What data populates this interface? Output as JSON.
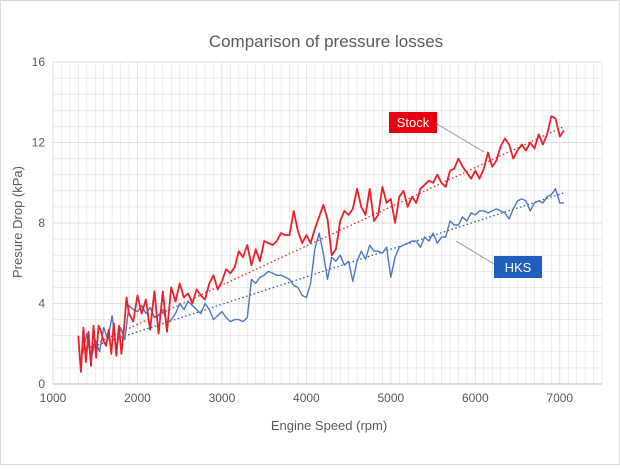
{
  "chart_data": {
    "type": "line",
    "title": "Comparison of pressure losses",
    "xlabel": "Engine Speed (rpm)",
    "ylabel": "Presure Drop (kPa)",
    "xlim": [
      1000,
      7500
    ],
    "ylim": [
      0,
      16
    ],
    "xticks": [
      1000,
      2000,
      3000,
      4000,
      5000,
      6000,
      7000
    ],
    "yticks": [
      0,
      4,
      8,
      12,
      16
    ],
    "grid": true,
    "colors": {
      "stock": "#e8212a",
      "hks": "#4a78c0",
      "stock_trend": "#e8212a",
      "hks_trend": "#2a55b0",
      "grid": "#e2e2e2",
      "callout_stock": "#e60012",
      "callout_hks": "#1f5fbf"
    },
    "series": [
      {
        "name": "Stock",
        "x": [
          1300,
          1330,
          1360,
          1390,
          1420,
          1450,
          1480,
          1510,
          1540,
          1570,
          1600,
          1630,
          1660,
          1690,
          1720,
          1750,
          1780,
          1810,
          1840,
          1870,
          1900,
          1950,
          2000,
          2050,
          2100,
          2150,
          2200,
          2250,
          2300,
          2350,
          2400,
          2450,
          2500,
          2550,
          2600,
          2650,
          2700,
          2750,
          2800,
          2850,
          2900,
          2950,
          3000,
          3050,
          3100,
          3150,
          3200,
          3250,
          3300,
          3350,
          3400,
          3450,
          3500,
          3550,
          3600,
          3650,
          3700,
          3750,
          3800,
          3850,
          3900,
          3950,
          4000,
          4050,
          4100,
          4150,
          4200,
          4250,
          4300,
          4350,
          4400,
          4450,
          4500,
          4550,
          4600,
          4650,
          4700,
          4750,
          4800,
          4850,
          4900,
          4950,
          5000,
          5050,
          5100,
          5150,
          5200,
          5250,
          5300,
          5350,
          5400,
          5450,
          5500,
          5550,
          5600,
          5650,
          5700,
          5750,
          5800,
          5850,
          5900,
          5950,
          6000,
          6050,
          6100,
          6150,
          6200,
          6250,
          6300,
          6350,
          6400,
          6450,
          6500,
          6550,
          6600,
          6650,
          6700,
          6750,
          6800,
          6850,
          6900,
          6950,
          7000,
          7050
        ],
        "values": [
          2.4,
          0.6,
          2.8,
          1.1,
          2.6,
          0.9,
          2.9,
          1.3,
          2.9,
          2.6,
          2.1,
          1.9,
          2.7,
          1.5,
          3.0,
          1.4,
          2.9,
          1.5,
          2.7,
          4.3,
          3.5,
          3.1,
          4.4,
          3.5,
          4.2,
          2.7,
          4.6,
          2.5,
          4.6,
          2.6,
          4.8,
          4.1,
          5.0,
          4.3,
          4.5,
          4.0,
          4.7,
          4.4,
          4.2,
          5.0,
          5.4,
          4.7,
          5.1,
          5.7,
          5.5,
          5.8,
          6.6,
          6.3,
          6.9,
          5.9,
          6.7,
          6.1,
          7.1,
          7.0,
          6.9,
          7.1,
          7.5,
          7.4,
          7.4,
          8.6,
          7.6,
          7.0,
          7.4,
          7.0,
          7.7,
          8.3,
          8.9,
          8.2,
          6.4,
          6.7,
          8.1,
          8.6,
          8.4,
          8.7,
          9.7,
          8.8,
          8.4,
          9.7,
          8.1,
          8.4,
          9.8,
          9.0,
          9.2,
          8.0,
          9.3,
          9.6,
          8.8,
          9.3,
          9.0,
          9.7,
          9.9,
          10.1,
          10.0,
          10.4,
          10.0,
          9.8,
          10.6,
          10.7,
          11.2,
          10.8,
          10.5,
          10.2,
          10.6,
          10.2,
          10.7,
          11.5,
          10.8,
          11.1,
          11.8,
          12.2,
          11.9,
          11.2,
          11.6,
          11.9,
          11.6,
          12.0,
          11.7,
          12.4,
          11.9,
          12.4,
          13.3,
          13.2,
          12.3,
          12.6
        ],
        "trend": [
          [
            1300,
            1.6
          ],
          [
            7050,
            12.8
          ]
        ]
      },
      {
        "name": "HKS",
        "x": [
          1350,
          1400,
          1450,
          1500,
          1550,
          1600,
          1650,
          1700,
          1750,
          1800,
          1850,
          1900,
          1950,
          2000,
          2050,
          2100,
          2150,
          2200,
          2250,
          2300,
          2350,
          2400,
          2450,
          2500,
          2550,
          2600,
          2650,
          2700,
          2750,
          2800,
          2850,
          2900,
          2950,
          3000,
          3050,
          3100,
          3150,
          3200,
          3250,
          3300,
          3350,
          3400,
          3450,
          3500,
          3550,
          3600,
          3650,
          3700,
          3750,
          3800,
          3850,
          3900,
          3950,
          4000,
          4050,
          4100,
          4150,
          4200,
          4250,
          4300,
          4350,
          4400,
          4450,
          4500,
          4550,
          4600,
          4650,
          4700,
          4750,
          4800,
          4850,
          4900,
          4950,
          5000,
          5050,
          5100,
          5150,
          5200,
          5250,
          5300,
          5350,
          5400,
          5450,
          5500,
          5550,
          5600,
          5650,
          5700,
          5750,
          5800,
          5850,
          5900,
          5950,
          6000,
          6050,
          6100,
          6150,
          6200,
          6250,
          6300,
          6350,
          6400,
          6450,
          6500,
          6550,
          6600,
          6650,
          6700,
          6750,
          6800,
          6850,
          6900,
          6950,
          7000,
          7050
        ],
        "values": [
          1.5,
          2.5,
          1.2,
          2.2,
          1.6,
          2.8,
          2.2,
          3.4,
          1.7,
          2.8,
          2.2,
          3.9,
          3.7,
          3.6,
          3.9,
          3.5,
          3.8,
          3.3,
          3.4,
          3.7,
          3.0,
          3.2,
          3.5,
          4.0,
          3.7,
          4.1,
          3.9,
          3.7,
          3.5,
          4.0,
          3.7,
          3.2,
          3.4,
          3.6,
          3.3,
          3.1,
          3.2,
          3.2,
          3.1,
          3.3,
          5.2,
          5.0,
          5.3,
          5.4,
          5.6,
          5.5,
          5.4,
          5.4,
          5.3,
          5.2,
          4.9,
          4.8,
          4.4,
          4.3,
          5.0,
          6.7,
          7.5,
          6.5,
          5.2,
          6.3,
          6.1,
          6.4,
          5.9,
          6.1,
          5.1,
          6.1,
          6.6,
          6.2,
          6.9,
          6.6,
          6.6,
          6.5,
          6.8,
          5.3,
          6.3,
          6.8,
          6.9,
          7.0,
          7.1,
          7.1,
          6.8,
          7.3,
          7.1,
          7.5,
          7.0,
          7.3,
          7.3,
          8.1,
          7.9,
          7.9,
          8.3,
          8.1,
          8.5,
          8.4,
          8.6,
          8.6,
          8.5,
          8.6,
          8.7,
          8.6,
          8.5,
          8.2,
          8.7,
          9.1,
          9.2,
          9.1,
          8.6,
          9.0,
          9.1,
          9.0,
          9.3,
          9.4,
          9.7,
          9.0,
          9.0
        ],
        "trend": [
          [
            1350,
            1.7
          ],
          [
            7050,
            9.5
          ]
        ]
      }
    ],
    "annotations": [
      {
        "label": "Stock",
        "series": "Stock"
      },
      {
        "label": "HKS",
        "series": "HKS"
      }
    ]
  }
}
